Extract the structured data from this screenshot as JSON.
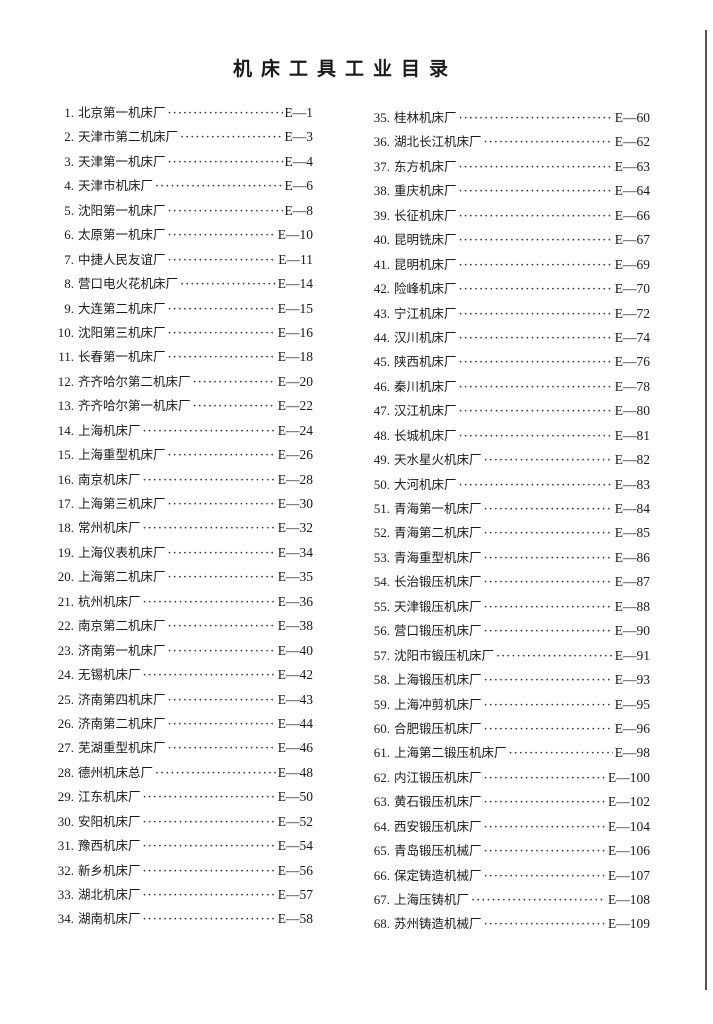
{
  "title": "机床工具工业目录",
  "left": [
    {
      "n": "1.",
      "name": "北京第一机床厂",
      "page": "E—1"
    },
    {
      "n": "2.",
      "name": "天津市第二机床厂",
      "page": "E—3"
    },
    {
      "n": "3.",
      "name": "天津第一机床厂",
      "page": "E—4"
    },
    {
      "n": "4.",
      "name": "天津市机床厂",
      "page": "E—6"
    },
    {
      "n": "5.",
      "name": "沈阳第一机床厂",
      "page": "E—8"
    },
    {
      "n": "6.",
      "name": "太原第一机床厂",
      "page": "E—10"
    },
    {
      "n": "7.",
      "name": "中捷人民友谊厂",
      "page": "E—11"
    },
    {
      "n": "8.",
      "name": "营口电火花机床厂",
      "page": "E—14"
    },
    {
      "n": "9.",
      "name": "大连第二机床厂",
      "page": "E—15"
    },
    {
      "n": "10.",
      "name": "沈阳第三机床厂",
      "page": "E—16"
    },
    {
      "n": "11.",
      "name": "长春第一机床厂",
      "page": "E—18"
    },
    {
      "n": "12.",
      "name": "齐齐哈尔第二机床厂",
      "page": "E—20"
    },
    {
      "n": "13.",
      "name": "齐齐哈尔第一机床厂",
      "page": "E—22"
    },
    {
      "n": "14.",
      "name": "上海机床厂",
      "page": "E—24"
    },
    {
      "n": "15.",
      "name": "上海重型机床厂",
      "page": "E—26"
    },
    {
      "n": "16.",
      "name": "南京机床厂",
      "page": "E—28"
    },
    {
      "n": "17.",
      "name": "上海第三机床厂",
      "page": "E—30"
    },
    {
      "n": "18.",
      "name": "常州机床厂",
      "page": "E—32"
    },
    {
      "n": "19.",
      "name": "上海仪表机床厂",
      "page": "E—34"
    },
    {
      "n": "20.",
      "name": "上海第二机床厂",
      "page": "E—35"
    },
    {
      "n": "21.",
      "name": "杭州机床厂",
      "page": "E—36"
    },
    {
      "n": "22.",
      "name": "南京第二机床厂",
      "page": "E—38"
    },
    {
      "n": "23.",
      "name": "济南第一机床厂",
      "page": "E—40"
    },
    {
      "n": "24.",
      "name": "无锡机床厂",
      "page": "E—42"
    },
    {
      "n": "25.",
      "name": "济南第四机床厂",
      "page": "E—43"
    },
    {
      "n": "26.",
      "name": "济南第二机床厂",
      "page": "E—44"
    },
    {
      "n": "27.",
      "name": "芜湖重型机床厂",
      "page": "E—46"
    },
    {
      "n": "28.",
      "name": "德州机床总厂",
      "page": "E—48"
    },
    {
      "n": "29.",
      "name": "江东机床厂",
      "page": "E—50"
    },
    {
      "n": "30.",
      "name": "安阳机床厂",
      "page": "E—52"
    },
    {
      "n": "31.",
      "name": "豫西机床厂",
      "page": "E—54"
    },
    {
      "n": "32.",
      "name": "新乡机床厂",
      "page": "E—56"
    },
    {
      "n": "33.",
      "name": "湖北机床厂",
      "page": "E—57"
    },
    {
      "n": "34.",
      "name": "湖南机床厂",
      "page": "E—58"
    }
  ],
  "right": [
    {
      "n": "35.",
      "name": "桂林机床厂",
      "page": "E—60"
    },
    {
      "n": "36.",
      "name": "湖北长江机床厂",
      "page": "E—62"
    },
    {
      "n": "37.",
      "name": "东方机床厂",
      "page": "E—63"
    },
    {
      "n": "38.",
      "name": "重庆机床厂",
      "page": "E—64"
    },
    {
      "n": "39.",
      "name": "长征机床厂",
      "page": "E—66"
    },
    {
      "n": "40.",
      "name": "昆明铣床厂",
      "page": "E—67"
    },
    {
      "n": "41.",
      "name": "昆明机床厂",
      "page": "E—69"
    },
    {
      "n": "42.",
      "name": "险峰机床厂",
      "page": "E—70"
    },
    {
      "n": "43.",
      "name": "宁江机床厂",
      "page": "E—72"
    },
    {
      "n": "44.",
      "name": "汉川机床厂",
      "page": "E—74"
    },
    {
      "n": "45.",
      "name": "陕西机床厂",
      "page": "E—76"
    },
    {
      "n": "46.",
      "name": "秦川机床厂",
      "page": "E—78"
    },
    {
      "n": "47.",
      "name": "汉江机床厂",
      "page": "E—80"
    },
    {
      "n": "48.",
      "name": "长城机床厂",
      "page": "E—81"
    },
    {
      "n": "49.",
      "name": "天水星火机床厂",
      "page": "E—82"
    },
    {
      "n": "50.",
      "name": "大河机床厂",
      "page": "E—83"
    },
    {
      "n": "51.",
      "name": "青海第一机床厂",
      "page": "E—84"
    },
    {
      "n": "52.",
      "name": "青海第二机床厂",
      "page": "E—85"
    },
    {
      "n": "53.",
      "name": "青海重型机床厂",
      "page": "E—86"
    },
    {
      "n": "54.",
      "name": "长治锻压机床厂",
      "page": "E—87"
    },
    {
      "n": "55.",
      "name": "天津锻压机床厂",
      "page": "E—88"
    },
    {
      "n": "56.",
      "name": "营口锻压机床厂",
      "page": "E—90"
    },
    {
      "n": "57.",
      "name": "沈阳市锻压机床厂",
      "page": "E—91"
    },
    {
      "n": "58.",
      "name": "上海锻压机床厂",
      "page": "E—93"
    },
    {
      "n": "59.",
      "name": "上海冲剪机床厂",
      "page": "E—95"
    },
    {
      "n": "60.",
      "name": "合肥锻压机床厂",
      "page": "E—96"
    },
    {
      "n": "61.",
      "name": "上海第二锻压机床厂",
      "page": "E—98"
    },
    {
      "n": "62.",
      "name": "内江锻压机床厂",
      "page": "E—100"
    },
    {
      "n": "63.",
      "name": "黄石锻压机床厂",
      "page": "E—102"
    },
    {
      "n": "64.",
      "name": "西安锻压机床厂",
      "page": "E—104"
    },
    {
      "n": "65.",
      "name": "青岛锻压机械厂",
      "page": "E—106"
    },
    {
      "n": "66.",
      "name": "保定铸造机械厂",
      "page": "E—107"
    },
    {
      "n": "67.",
      "name": "上海压铸机厂",
      "page": "E—108"
    },
    {
      "n": "68.",
      "name": "苏州铸造机械厂",
      "page": "E—109"
    }
  ]
}
